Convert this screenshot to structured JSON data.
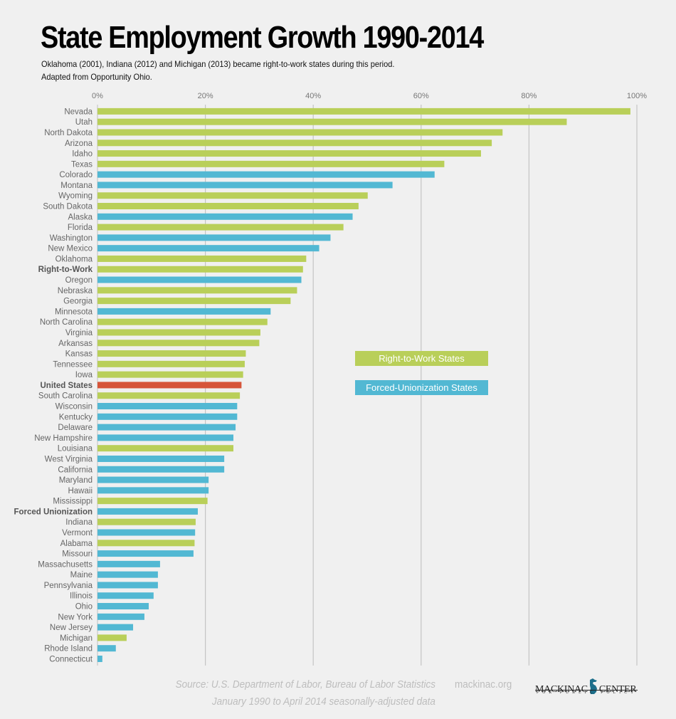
{
  "chart_data": {
    "type": "bar",
    "orientation": "horizontal",
    "title": "State Employment Growth 1990-2014",
    "subtitle": [
      "Oklahoma (2001), Indiana (2012) and Michigan (2013) became right-to-work states during this period.",
      "Adapted from Opportunity Ohio."
    ],
    "xlim": [
      0,
      100
    ],
    "xticks": [
      0,
      20,
      40,
      60,
      80,
      100
    ],
    "xtick_labels": [
      "0%",
      "20%",
      "40%",
      "60%",
      "80%",
      "100%"
    ],
    "grid": true,
    "xlabel": "",
    "ylabel": "",
    "colors": {
      "rtw": "#b9cf59",
      "fu": "#52b8d3",
      "us": "#d6553a"
    },
    "legend": {
      "placement": "center-right",
      "entries": [
        {
          "label": "Right-to-Work States",
          "group": "rtw"
        },
        {
          "label": "Forced-Unionization States",
          "group": "fu"
        }
      ]
    },
    "categories": [
      "Nevada",
      "Utah",
      "North Dakota",
      "Arizona",
      "Idaho",
      "Texas",
      "Colorado",
      "Montana",
      "Wyoming",
      "South Dakota",
      "Alaska",
      "Florida",
      "Washington",
      "New Mexico",
      "Oklahoma",
      "Right-to-Work",
      "Oregon",
      "Nebraska",
      "Georgia",
      "Minnesota",
      "North Carolina",
      "Virginia",
      "Arkansas",
      "Kansas",
      "Tennessee",
      "Iowa",
      "United States",
      "South Carolina",
      "Wisconsin",
      "Kentucky",
      "Delaware",
      "New Hampshire",
      "Louisiana",
      "West Virginia",
      "California",
      "Maryland",
      "Hawaii",
      "Mississippi",
      "Forced Unionization",
      "Indiana",
      "Vermont",
      "Alabama",
      "Missouri",
      "Massachusetts",
      "Maine",
      "Pennsylvania",
      "Illinois",
      "Ohio",
      "New York",
      "New Jersey",
      "Michigan",
      "Rhode Island",
      "Connecticut"
    ],
    "values": [
      98.8,
      87.0,
      75.1,
      73.1,
      71.1,
      64.3,
      62.5,
      54.7,
      50.1,
      48.4,
      47.3,
      45.6,
      43.2,
      41.1,
      38.7,
      38.1,
      37.8,
      37.0,
      35.8,
      32.1,
      31.5,
      30.2,
      30.0,
      27.5,
      27.3,
      27.0,
      26.7,
      26.4,
      25.9,
      25.9,
      25.6,
      25.2,
      25.2,
      23.5,
      23.5,
      20.6,
      20.6,
      20.4,
      18.6,
      18.2,
      18.1,
      18.0,
      17.8,
      11.6,
      11.2,
      11.2,
      10.4,
      9.5,
      8.7,
      6.6,
      5.4,
      3.4,
      0.9
    ],
    "groups": [
      "rtw",
      "rtw",
      "rtw",
      "rtw",
      "rtw",
      "rtw",
      "fu",
      "fu",
      "rtw",
      "rtw",
      "fu",
      "rtw",
      "fu",
      "fu",
      "rtw",
      "rtw",
      "fu",
      "rtw",
      "rtw",
      "fu",
      "rtw",
      "rtw",
      "rtw",
      "rtw",
      "rtw",
      "rtw",
      "us",
      "rtw",
      "fu",
      "fu",
      "fu",
      "fu",
      "rtw",
      "fu",
      "fu",
      "fu",
      "fu",
      "rtw",
      "fu",
      "rtw",
      "fu",
      "rtw",
      "fu",
      "fu",
      "fu",
      "fu",
      "fu",
      "fu",
      "fu",
      "fu",
      "rtw",
      "fu",
      "fu"
    ],
    "bold_labels": [
      "Right-to-Work",
      "United States",
      "Forced Unionization"
    ]
  },
  "footer": {
    "source_line1": "Source: U.S. Department of Labor, Bureau of Labor Statistics",
    "source_line2": "January 1990 to April 2014 seasonally-adjusted data",
    "website": "mackinac.org",
    "logo_main_left": "MACKINAC",
    "logo_main_right": "CENTER",
    "logo_sub": "FOR PUBLIC POLICY",
    "logo_icon": "michigan-map-icon"
  }
}
